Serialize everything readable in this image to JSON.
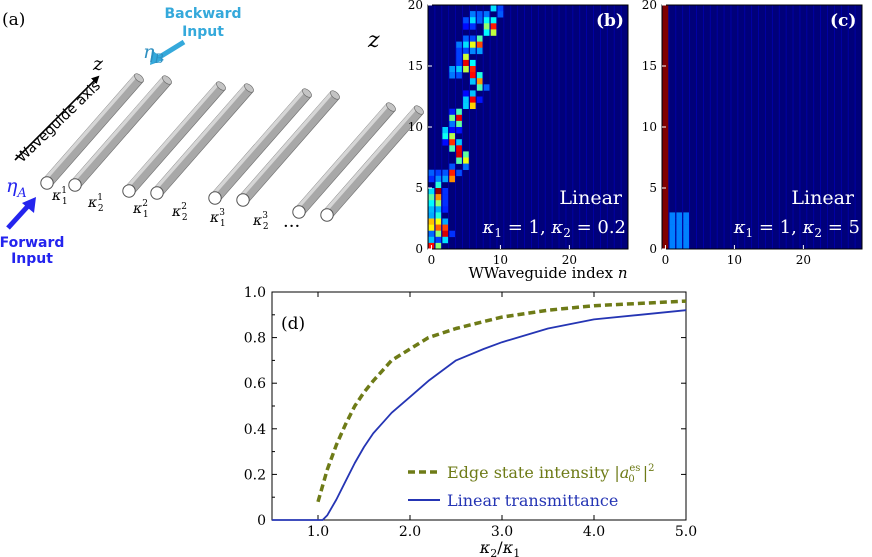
{
  "colors": {
    "backward": "#35a9db",
    "forward": "#2424ee",
    "edge": "#6e7b17",
    "linear": "#2535b4",
    "tube": "#a9a9a9",
    "map_bg": "#00007a"
  },
  "panel_a": {
    "label": "(a)",
    "backward_text_1": "Backward",
    "backward_text_2": "Input",
    "forward_text_1": "Forward",
    "forward_text_2": "Input",
    "eta_b": "ηB",
    "eta_a": "ηA",
    "axis_label": "Waveguide axis",
    "z_symbol": "z",
    "couplings": [
      {
        "sym": "κ",
        "sup": "1",
        "sub": "1"
      },
      {
        "sym": "κ",
        "sup": "1",
        "sub": "2"
      },
      {
        "sym": "κ",
        "sup": "2",
        "sub": "1"
      },
      {
        "sym": "κ",
        "sup": "2",
        "sub": "2"
      },
      {
        "sym": "κ",
        "sup": "3",
        "sub": "1"
      },
      {
        "sym": "κ",
        "sup": "3",
        "sub": "2"
      }
    ],
    "ellipsis": "···"
  },
  "panel_b": {
    "label": "(b)",
    "regime": "Linear",
    "params": "κ1 = 1,  κ2 = 0.2",
    "y_axis_label": "z",
    "y_ticks": [
      "0",
      "5",
      "10",
      "15",
      "20"
    ],
    "x_ticks": [
      "0",
      "10",
      "20"
    ]
  },
  "panel_c": {
    "label": "(c)",
    "regime": "Linear",
    "params": "κ1 = 1,  κ2 = 5",
    "y_ticks": [
      "0",
      "5",
      "10",
      "15",
      "20"
    ],
    "x_ticks": [
      "0",
      "10",
      "20"
    ]
  },
  "maps_x_label": "Waveguide index n",
  "chart_data": {
    "type": "line",
    "label": "(d)",
    "xlabel": "κ2/κ1",
    "ylabel": "",
    "xlim": [
      0.5,
      5.0
    ],
    "ylim": [
      0.0,
      1.0
    ],
    "x_ticks": [
      "1.0",
      "2.0",
      "3.0",
      "4.0",
      "5.0"
    ],
    "y_ticks": [
      "0",
      "0.2",
      "0.4",
      "0.6",
      "0.8",
      "1.0"
    ],
    "legend_position": "bottom-right",
    "series": [
      {
        "name": "Edge state intensity |a0es|2",
        "style": "dashed",
        "x": [
          1.0,
          1.1,
          1.2,
          1.3,
          1.4,
          1.5,
          1.6,
          1.8,
          2.0,
          2.2,
          2.5,
          2.8,
          3.0,
          3.5,
          4.0,
          4.5,
          5.0
        ],
        "y": [
          0.08,
          0.22,
          0.33,
          0.42,
          0.5,
          0.56,
          0.61,
          0.7,
          0.75,
          0.8,
          0.84,
          0.87,
          0.89,
          0.92,
          0.94,
          0.95,
          0.96
        ]
      },
      {
        "name": "Linear transmittance",
        "style": "solid",
        "x": [
          0.5,
          0.8,
          1.0,
          1.05,
          1.1,
          1.2,
          1.3,
          1.4,
          1.5,
          1.6,
          1.8,
          2.0,
          2.2,
          2.5,
          2.8,
          3.0,
          3.5,
          4.0,
          4.5,
          5.0
        ],
        "y": [
          0.0,
          0.0,
          0.0,
          0.0,
          0.02,
          0.09,
          0.17,
          0.25,
          0.32,
          0.38,
          0.47,
          0.54,
          0.61,
          0.7,
          0.75,
          0.78,
          0.84,
          0.88,
          0.9,
          0.92
        ]
      }
    ]
  }
}
